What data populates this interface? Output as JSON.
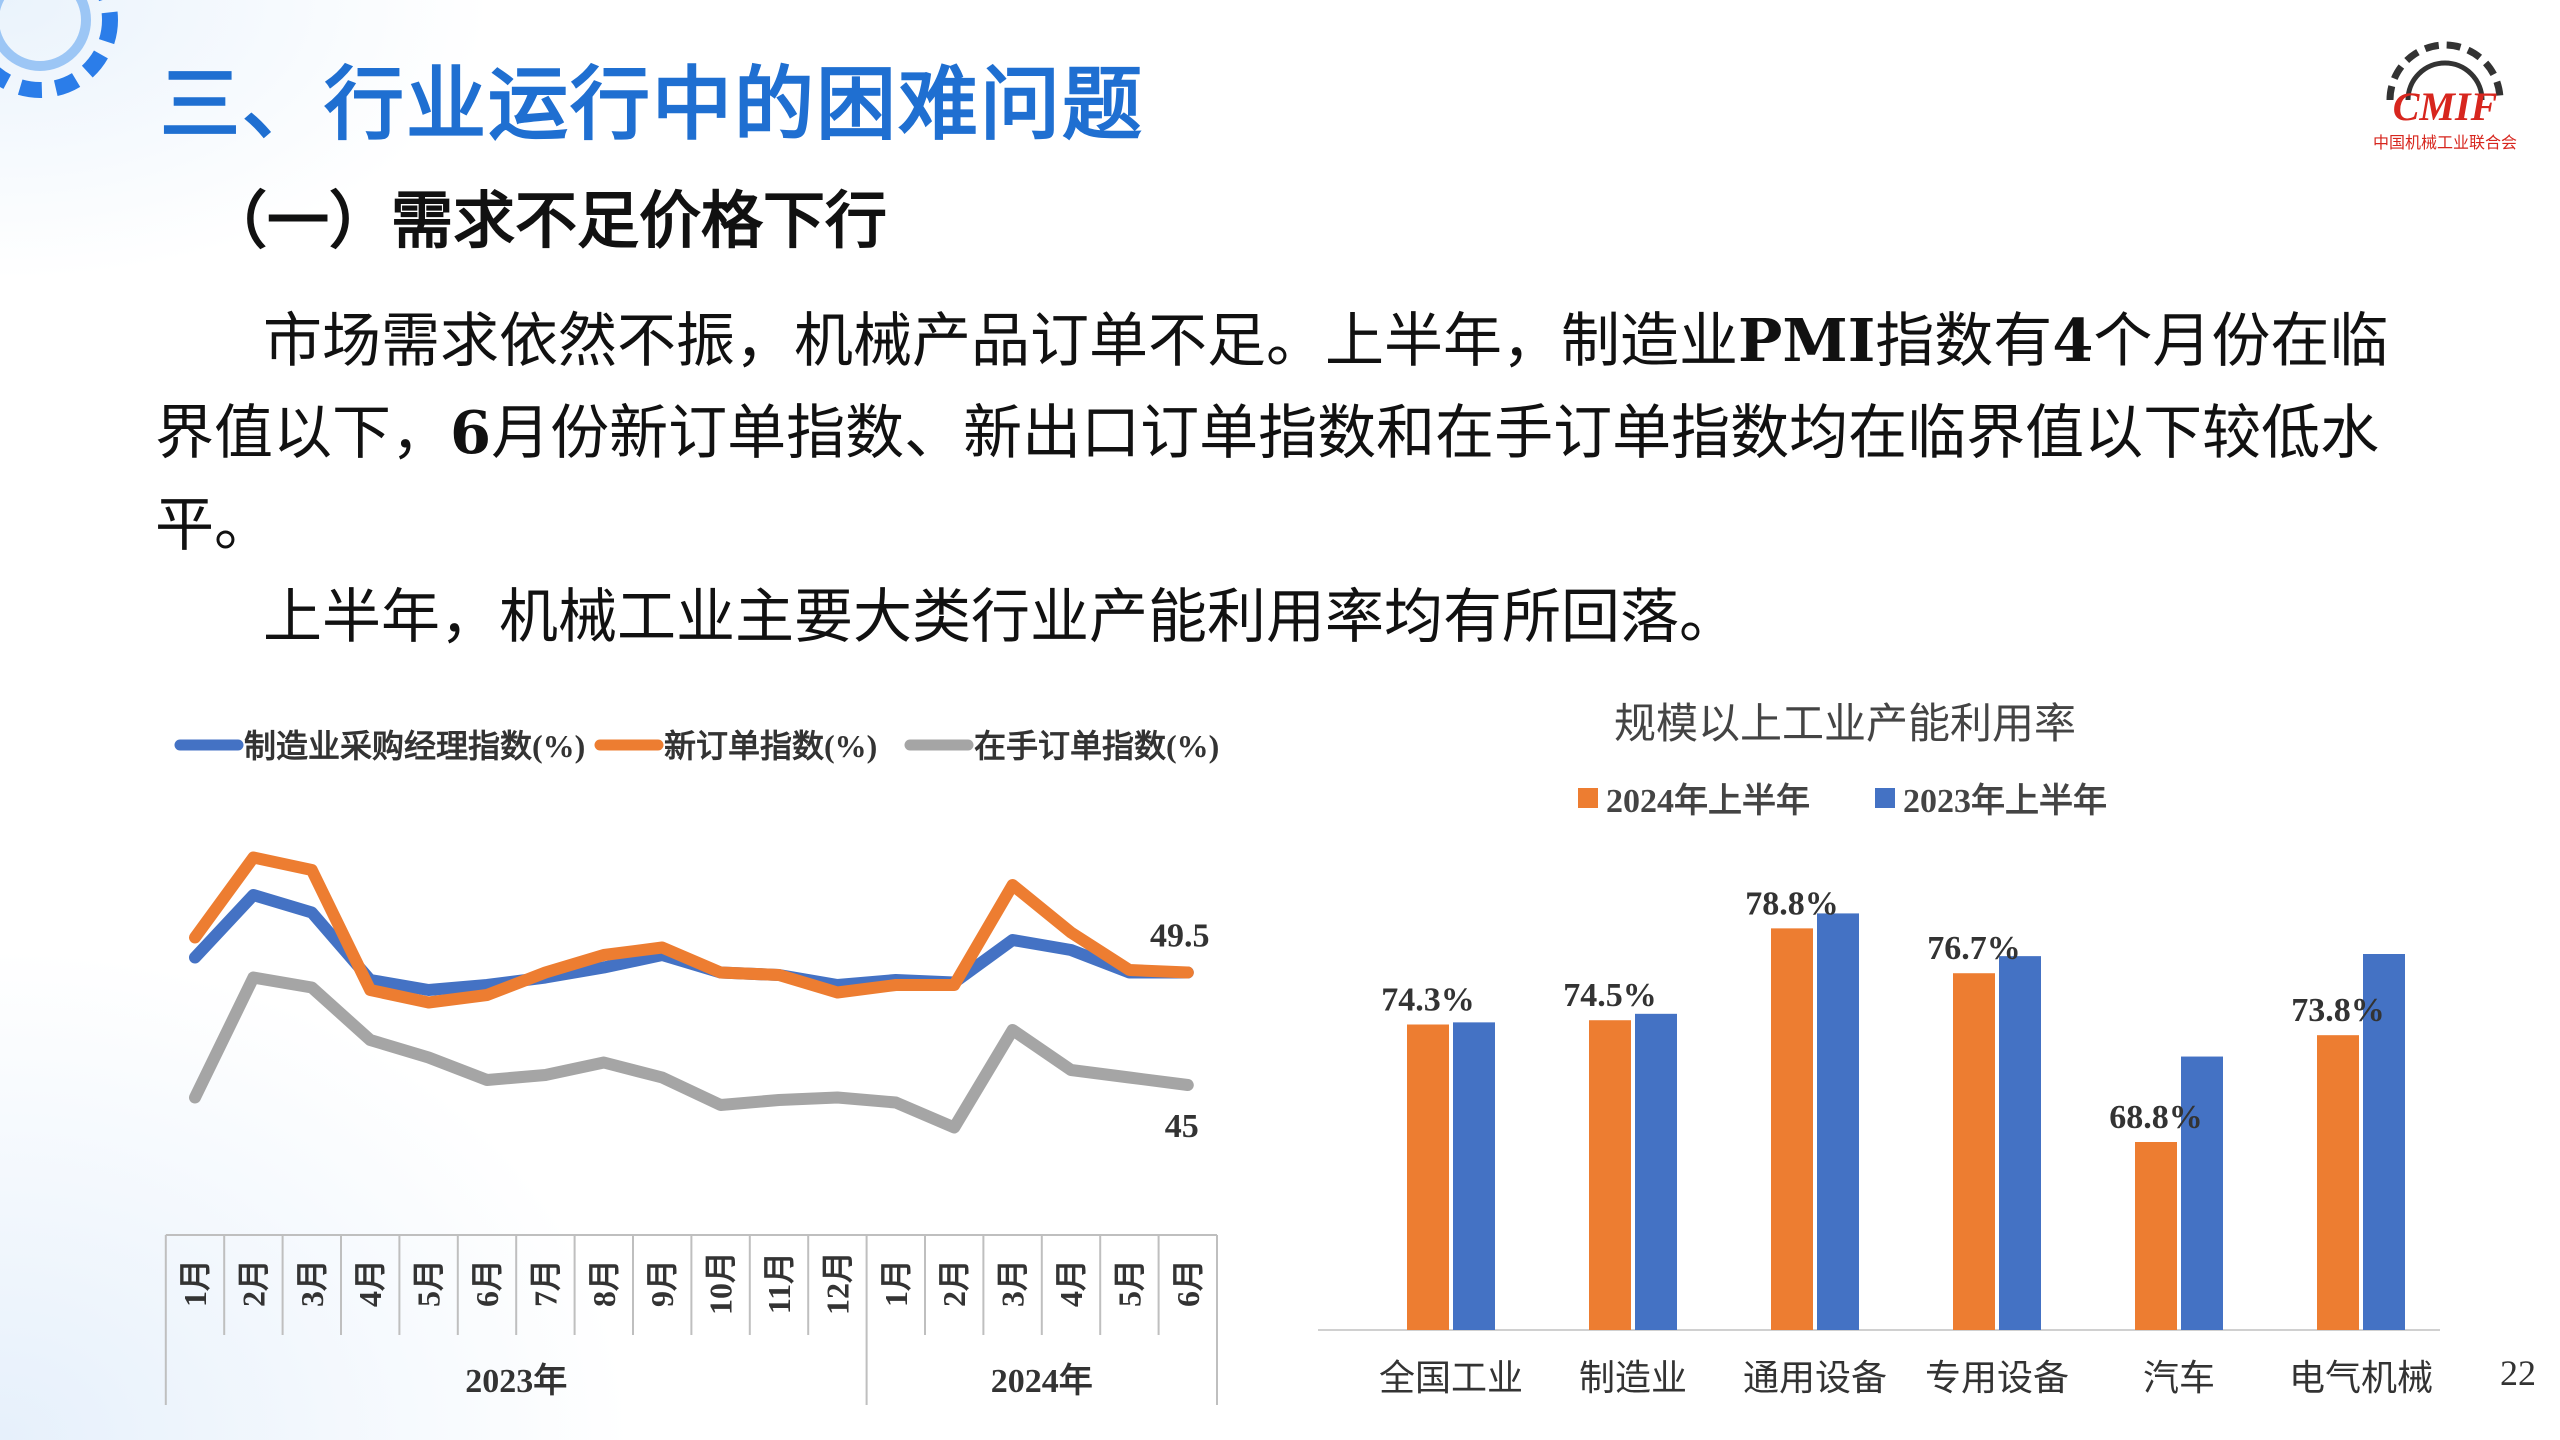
{
  "header": {
    "title": "三、行业运行中的困难问题",
    "subtitle": "（一）需求不足价格下行",
    "logo_text": "CMIF",
    "logo_caption": "中国机械工业联合会"
  },
  "body": {
    "para1_a": "市场需求依然不振，机械产品订单不足。上半年，制造业",
    "para1_b": "PMI",
    "para1_c": "指数有",
    "para1_d": "4",
    "para1_e": "个月份在临界值以下，",
    "para1_f": "6",
    "para1_g": "月份新订单指数、新出口订单指数和在手订单指数均在临界值以下较低水平。",
    "para2": "上半年，机械工业主要大类行业产能利用率均有所回落。"
  },
  "page_number": "22",
  "chart_data": [
    {
      "type": "line",
      "title": "",
      "categories": [
        "1月",
        "2月",
        "3月",
        "4月",
        "5月",
        "6月",
        "7月",
        "8月",
        "9月",
        "10月",
        "11月",
        "12月",
        "1月",
        "2月",
        "3月",
        "4月",
        "5月",
        "6月"
      ],
      "groups": [
        {
          "label": "2023年",
          "start": 0,
          "end": 11
        },
        {
          "label": "2024年",
          "start": 12,
          "end": 17
        }
      ],
      "series": [
        {
          "name": "制造业采购经理指数(%)",
          "color": "#4472c4",
          "values": [
            50.1,
            52.6,
            51.9,
            49.2,
            48.8,
            49.0,
            49.3,
            49.7,
            50.2,
            49.5,
            49.4,
            49.0,
            49.2,
            49.1,
            50.8,
            50.4,
            49.5,
            49.5
          ]
        },
        {
          "name": "新订单指数(%)",
          "color": "#ed7d31",
          "values": [
            50.9,
            54.1,
            53.6,
            48.8,
            48.3,
            48.6,
            49.5,
            50.2,
            50.5,
            49.5,
            49.4,
            48.7,
            49.0,
            49.0,
            53.0,
            51.1,
            49.6,
            49.5
          ]
        },
        {
          "name": "在手订单指数(%)",
          "color": "#a5a5a5",
          "values": [
            44.5,
            49.3,
            48.9,
            46.8,
            46.1,
            45.2,
            45.4,
            45.9,
            45.3,
            44.2,
            44.4,
            44.5,
            44.3,
            43.3,
            47.2,
            45.6,
            45.3,
            45.0
          ]
        }
      ],
      "end_labels": [
        "49.5",
        "45"
      ],
      "ylim": [
        40,
        56
      ]
    },
    {
      "type": "bar",
      "title": "规模以上工业产能利用率",
      "categories": [
        "全国工业",
        "制造业",
        "通用设备",
        "专用设备",
        "汽车",
        "电气机械"
      ],
      "series": [
        {
          "name": "2024年上半年",
          "color": "#ed7d31",
          "values": [
            74.3,
            74.5,
            78.8,
            76.7,
            68.8,
            73.8
          ]
        },
        {
          "name": "2023年上半年",
          "color": "#4472c4",
          "values": [
            74.4,
            74.8,
            79.5,
            77.5,
            72.8,
            77.6
          ]
        }
      ],
      "data_labels": [
        "74.3%",
        "74.5%",
        "78.8%",
        "76.7%",
        "68.8%",
        "73.8%"
      ],
      "ylim": [
        60,
        82
      ]
    }
  ]
}
